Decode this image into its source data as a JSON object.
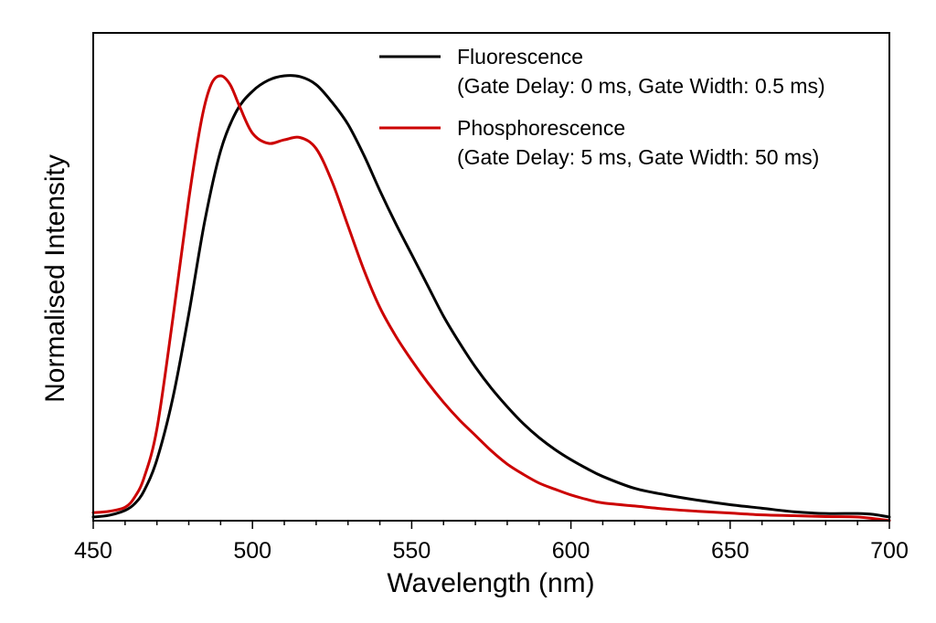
{
  "chart_data": {
    "type": "line",
    "title": "",
    "xlabel": "Wavelength (nm)",
    "ylabel": "Normalised Intensity",
    "xlim": [
      450,
      700
    ],
    "ylim": [
      0,
      1.0
    ],
    "x_ticks": [
      "450",
      "500",
      "550",
      "600",
      "650",
      "700"
    ],
    "y_tick_labels_shown": false,
    "grid": false,
    "legend_position": "top-right",
    "series": [
      {
        "name": "Fluorescence",
        "legend_detail": "(Gate Delay: 0 ms, Gate Width: 0.5 ms)",
        "color": "#000000",
        "x": [
          450,
          455,
          460,
          463,
          466,
          470,
          475,
          480,
          485,
          490,
          495,
          500,
          505,
          510,
          515,
          520,
          525,
          530,
          535,
          540,
          545,
          550,
          555,
          560,
          565,
          570,
          575,
          580,
          585,
          590,
          595,
          600,
          605,
          610,
          620,
          630,
          640,
          650,
          660,
          670,
          680,
          690,
          695,
          700
        ],
        "y": [
          0.0,
          0.004,
          0.015,
          0.03,
          0.06,
          0.13,
          0.27,
          0.46,
          0.67,
          0.83,
          0.92,
          0.965,
          0.99,
          1.0,
          0.998,
          0.98,
          0.94,
          0.89,
          0.82,
          0.74,
          0.665,
          0.595,
          0.525,
          0.455,
          0.395,
          0.34,
          0.292,
          0.25,
          0.212,
          0.18,
          0.153,
          0.13,
          0.11,
          0.092,
          0.065,
          0.05,
          0.038,
          0.028,
          0.02,
          0.012,
          0.008,
          0.008,
          0.006,
          0.0
        ]
      },
      {
        "name": "Phosphorescence",
        "legend_detail": "(Gate Delay: 5 ms, Gate Width: 50 ms)",
        "color": "#cc0000",
        "x": [
          450,
          455,
          460,
          463,
          466,
          470,
          475,
          480,
          484,
          487,
          490,
          493,
          496,
          500,
          505,
          510,
          515,
          520,
          525,
          530,
          535,
          540,
          545,
          550,
          555,
          560,
          565,
          570,
          575,
          580,
          585,
          590,
          595,
          600,
          605,
          610,
          620,
          630,
          640,
          650,
          660,
          670,
          680,
          690,
          700
        ],
        "y": [
          0.01,
          0.013,
          0.022,
          0.045,
          0.09,
          0.2,
          0.45,
          0.72,
          0.9,
          0.98,
          1.0,
          0.98,
          0.93,
          0.87,
          0.847,
          0.855,
          0.86,
          0.835,
          0.76,
          0.66,
          0.56,
          0.475,
          0.41,
          0.355,
          0.305,
          0.26,
          0.22,
          0.185,
          0.15,
          0.12,
          0.097,
          0.077,
          0.063,
          0.05,
          0.04,
          0.032,
          0.025,
          0.018,
          0.013,
          0.009,
          0.005,
          0.003,
          0.001,
          0.0,
          -0.008
        ]
      }
    ]
  }
}
